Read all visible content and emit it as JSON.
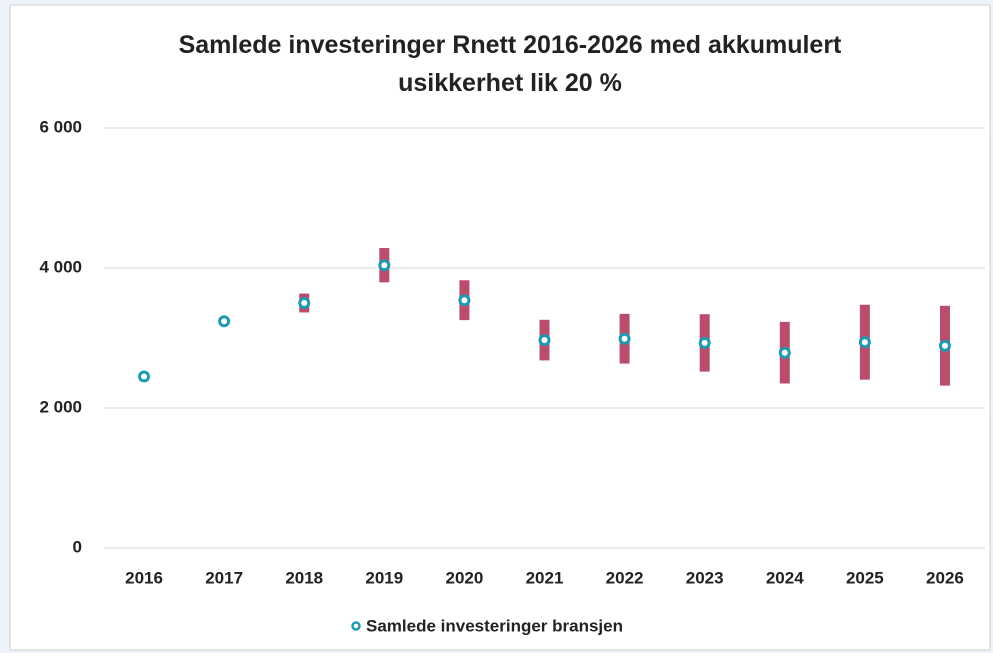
{
  "chart_data": {
    "type": "errorbar",
    "title": "Samlede investeringer Rnett 2016-2026 med akkumulert usikkerhet lik 20 %",
    "categories": [
      "2016",
      "2017",
      "2018",
      "2019",
      "2020",
      "2021",
      "2022",
      "2023",
      "2024",
      "2025",
      "2026"
    ],
    "series": [
      {
        "name": "Samlede investeringer bransjen",
        "color": "#1e9ab3",
        "error_color": "#b84d6c",
        "values": [
          2450,
          3240,
          3500,
          4040,
          3540,
          2970,
          2990,
          2930,
          2790,
          2940,
          2890
        ],
        "errors": [
          0,
          30,
          135,
          245,
          285,
          290,
          355,
          410,
          440,
          535,
          570
        ]
      }
    ],
    "ylim": [
      0,
      6000
    ],
    "yticks": [
      0,
      {
        "value": 2000,
        "label": "2 000"
      },
      {
        "value": 4000,
        "label": "4 000"
      },
      {
        "value": 6000,
        "label": "6 000"
      }
    ],
    "grid": true,
    "legend": "bottom"
  }
}
